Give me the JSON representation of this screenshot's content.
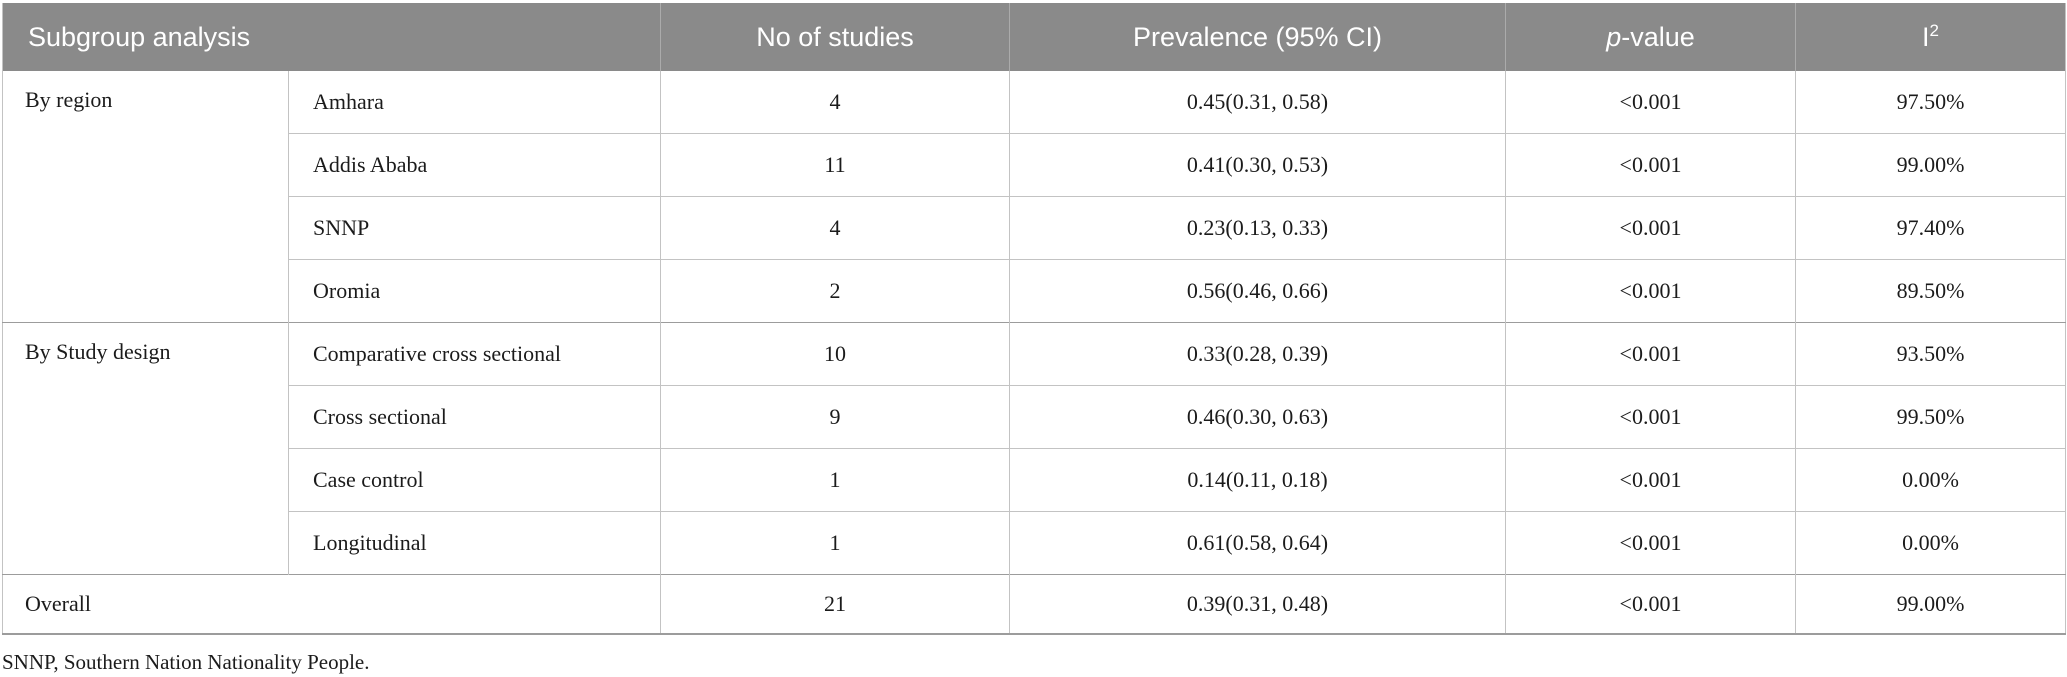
{
  "table": {
    "headers": {
      "subgroup": "Subgroup analysis",
      "studies": "No of studies",
      "prevalence": "Prevalence (95% CI)",
      "pvalue": {
        "italic": "p",
        "rest": "-value"
      },
      "i2": {
        "base": "I",
        "sup": "2"
      }
    },
    "groups": [
      {
        "label": "By region",
        "rows": [
          {
            "name": "Amhara",
            "studies": "4",
            "prevalence": "0.45(0.31, 0.58)",
            "pvalue": "<0.001",
            "i2": "97.50%"
          },
          {
            "name": "Addis Ababa",
            "studies": "11",
            "prevalence": "0.41(0.30, 0.53)",
            "pvalue": "<0.001",
            "i2": "99.00%"
          },
          {
            "name": "SNNP",
            "studies": "4",
            "prevalence": "0.23(0.13, 0.33)",
            "pvalue": "<0.001",
            "i2": "97.40%"
          },
          {
            "name": "Oromia",
            "studies": "2",
            "prevalence": "0.56(0.46, 0.66)",
            "pvalue": "<0.001",
            "i2": "89.50%"
          }
        ]
      },
      {
        "label": "By Study design",
        "rows": [
          {
            "name": "Comparative cross sectional",
            "studies": "10",
            "prevalence": "0.33(0.28, 0.39)",
            "pvalue": "<0.001",
            "i2": "93.50%"
          },
          {
            "name": "Cross sectional",
            "studies": "9",
            "prevalence": "0.46(0.30, 0.63)",
            "pvalue": "<0.001",
            "i2": "99.50%"
          },
          {
            "name": "Case control",
            "studies": "1",
            "prevalence": "0.14(0.11, 0.18)",
            "pvalue": "<0.001",
            "i2": "0.00%"
          },
          {
            "name": "Longitudinal",
            "studies": "1",
            "prevalence": "0.61(0.58, 0.64)",
            "pvalue": "<0.001",
            "i2": "0.00%"
          }
        ]
      }
    ],
    "overall": {
      "label": "Overall",
      "studies": "21",
      "prevalence": "0.39(0.31, 0.48)",
      "pvalue": "<0.001",
      "i2": "99.00%"
    },
    "footnote": "SNNP, Southern Nation Nationality People."
  },
  "colors": {
    "header_bg": "#8a8a8a",
    "header_text": "#ffffff",
    "body_text": "#1b1b1b",
    "row_line": "#c3c3c3",
    "group_line": "#9c9c9c"
  }
}
